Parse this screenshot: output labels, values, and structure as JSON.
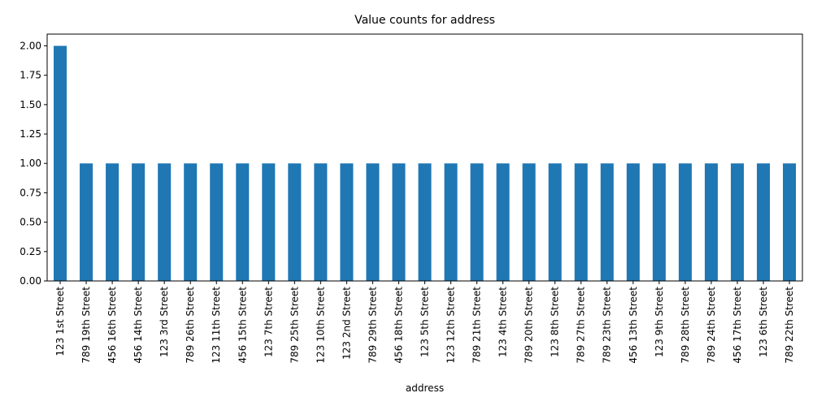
{
  "chart_data": {
    "type": "bar",
    "title": "Value counts for address",
    "xlabel": "address",
    "ylabel": "",
    "ylim": [
      0,
      2.1
    ],
    "yticks": [
      "0.00",
      "0.25",
      "0.50",
      "0.75",
      "1.00",
      "1.25",
      "1.50",
      "1.75",
      "2.00"
    ],
    "ytick_values": [
      0,
      0.25,
      0.5,
      0.75,
      1.0,
      1.25,
      1.5,
      1.75,
      2.0
    ],
    "grid": false,
    "bar_color": "#1f77b4",
    "categories": [
      "123 1st Street",
      "789 19th Street",
      "456 16th Street",
      "456 14th Street",
      "123 3rd Street",
      "789 26th Street",
      "123 11th Street",
      "456 15th Street",
      "123 7th Street",
      "789 25th Street",
      "123 10th Street",
      "123 2nd Street",
      "789 29th Street",
      "456 18th Street",
      "123 5th Street",
      "123 12th Street",
      "789 21th Street",
      "123 4th Street",
      "789 20th Street",
      "123 8th Street",
      "789 27th Street",
      "789 23th Street",
      "456 13th Street",
      "123 9th Street",
      "789 28th Street",
      "789 24th Street",
      "456 17th Street",
      "123 6th Street",
      "789 22th Street"
    ],
    "values": [
      2,
      1,
      1,
      1,
      1,
      1,
      1,
      1,
      1,
      1,
      1,
      1,
      1,
      1,
      1,
      1,
      1,
      1,
      1,
      1,
      1,
      1,
      1,
      1,
      1,
      1,
      1,
      1,
      1
    ]
  }
}
